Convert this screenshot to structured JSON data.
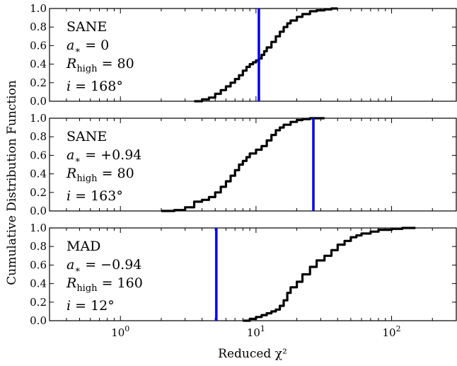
{
  "figure": {
    "ylabel": "Cumulative Distribution Function",
    "xlabel": "Reduced χ²",
    "xscale": "log",
    "xlim": [
      0.3,
      300
    ],
    "ylim": [
      0.0,
      1.0
    ],
    "y_ticks": [
      "0.0",
      "0.2",
      "0.4",
      "0.6",
      "0.8",
      "1.0"
    ],
    "x_ticks": [
      {
        "value": 1,
        "base": "10",
        "exp": "0"
      },
      {
        "value": 10,
        "base": "10",
        "exp": "1"
      },
      {
        "value": 100,
        "base": "10",
        "exp": "2"
      }
    ],
    "colors": {
      "cdf": "#000000",
      "marker": "#0000ee"
    }
  },
  "chart_data": [
    {
      "type": "line",
      "panel": "top",
      "annotation": {
        "model": "SANE",
        "spin": "a* = 0",
        "rhigh": "R_high = 80",
        "incl": "i = 168°"
      },
      "vertical_line_x": 10.5,
      "series": [
        {
          "x": [
            3.5,
            4.0,
            4.5,
            5.0,
            5.5,
            6.0,
            6.5,
            7.0,
            7.5,
            8.0,
            8.5,
            9.0,
            9.5,
            10.0,
            10.5,
            11.0,
            11.5,
            12.0,
            13.0,
            14.0,
            15.0,
            16.0,
            17.0,
            18.0,
            20.0,
            22.0,
            25.0,
            28.0,
            32.0,
            36.0,
            40.0
          ],
          "y": [
            0.0,
            0.02,
            0.04,
            0.08,
            0.12,
            0.16,
            0.2,
            0.24,
            0.28,
            0.33,
            0.37,
            0.4,
            0.42,
            0.44,
            0.46,
            0.5,
            0.54,
            0.58,
            0.64,
            0.7,
            0.75,
            0.8,
            0.84,
            0.87,
            0.91,
            0.94,
            0.97,
            0.98,
            0.99,
            1.0,
            1.0
          ]
        }
      ]
    },
    {
      "type": "line",
      "panel": "middle",
      "annotation": {
        "model": "SANE",
        "spin": "a* = +0.94",
        "rhigh": "R_high = 80",
        "incl": "i = 163°"
      },
      "vertical_line_x": 26.5,
      "series": [
        {
          "x": [
            2.0,
            2.5,
            3.0,
            3.5,
            4.0,
            4.5,
            5.0,
            5.5,
            6.0,
            6.5,
            7.0,
            7.5,
            8.0,
            8.5,
            9.0,
            10.0,
            11.0,
            12.0,
            13.0,
            14.0,
            15.0,
            16.0,
            18.0,
            20.0,
            22.0,
            25.0,
            28.0,
            32.0
          ],
          "y": [
            0.0,
            0.01,
            0.04,
            0.1,
            0.12,
            0.15,
            0.2,
            0.26,
            0.32,
            0.38,
            0.44,
            0.5,
            0.54,
            0.58,
            0.62,
            0.66,
            0.7,
            0.76,
            0.82,
            0.87,
            0.9,
            0.93,
            0.96,
            0.98,
            0.99,
            1.0,
            1.0,
            1.0
          ]
        }
      ]
    },
    {
      "type": "line",
      "panel": "bottom",
      "annotation": {
        "model": "MAD",
        "spin": "a* = −0.94",
        "rhigh": "R_high = 160",
        "incl": "i = 12°"
      },
      "vertical_line_x": 5.1,
      "series": [
        {
          "x": [
            8.0,
            9.0,
            10.0,
            11.0,
            12.0,
            13.0,
            14.0,
            15.0,
            16.0,
            17.0,
            18.0,
            20.0,
            22.0,
            25.0,
            28.0,
            32.0,
            36.0,
            40.0,
            45.0,
            50.0,
            55.0,
            60.0,
            70.0,
            80.0,
            100.0,
            120.0,
            150.0
          ],
          "y": [
            0.0,
            0.02,
            0.04,
            0.06,
            0.08,
            0.1,
            0.12,
            0.16,
            0.22,
            0.3,
            0.36,
            0.42,
            0.5,
            0.58,
            0.65,
            0.7,
            0.76,
            0.82,
            0.86,
            0.9,
            0.92,
            0.94,
            0.96,
            0.98,
            0.99,
            1.0,
            1.0
          ]
        }
      ]
    }
  ]
}
